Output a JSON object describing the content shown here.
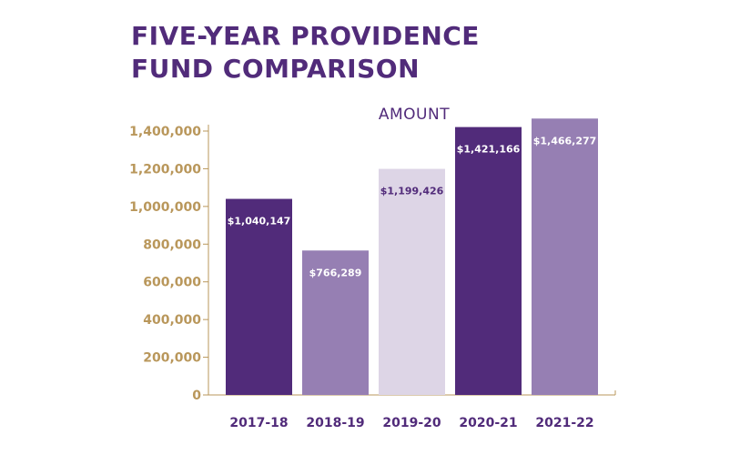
{
  "colors": {
    "title": "#512b7a",
    "axis": "#b9975b",
    "category_label": "#512b7a",
    "bar_colors": [
      "#512b7a",
      "#967fb3",
      "#ddd5e6",
      "#512b7a",
      "#967fb3"
    ],
    "data_label_colors": [
      "#ffffff",
      "#ffffff",
      "#512b7a",
      "#ffffff",
      "#ffffff"
    ]
  },
  "chart_data": {
    "type": "bar",
    "title": "FIVE-YEAR PROVIDENCE FUND COMPARISON",
    "title_lines": [
      "FIVE-YEAR PROVIDENCE",
      "FUND COMPARISON"
    ],
    "series_name": "AMOUNT",
    "categories": [
      "2017-18",
      "2018-19",
      "2019-20",
      "2020-21",
      "2021-22"
    ],
    "values": [
      1040147,
      766289,
      1199426,
      1421166,
      1466277
    ],
    "data_labels": [
      "$1,040,147",
      "$766,289",
      "$1,199,426",
      "$1,421,166",
      "$1,466,277"
    ],
    "ylim": [
      0,
      1400000
    ],
    "yticks": [
      0,
      200000,
      400000,
      600000,
      800000,
      1000000,
      1200000,
      1400000
    ],
    "ytick_labels": [
      "0",
      "200,000",
      "400,000",
      "600,000",
      "800,000",
      "1,000,000",
      "1,200,000",
      "1,400,000"
    ],
    "grid": false,
    "legend": "none"
  }
}
